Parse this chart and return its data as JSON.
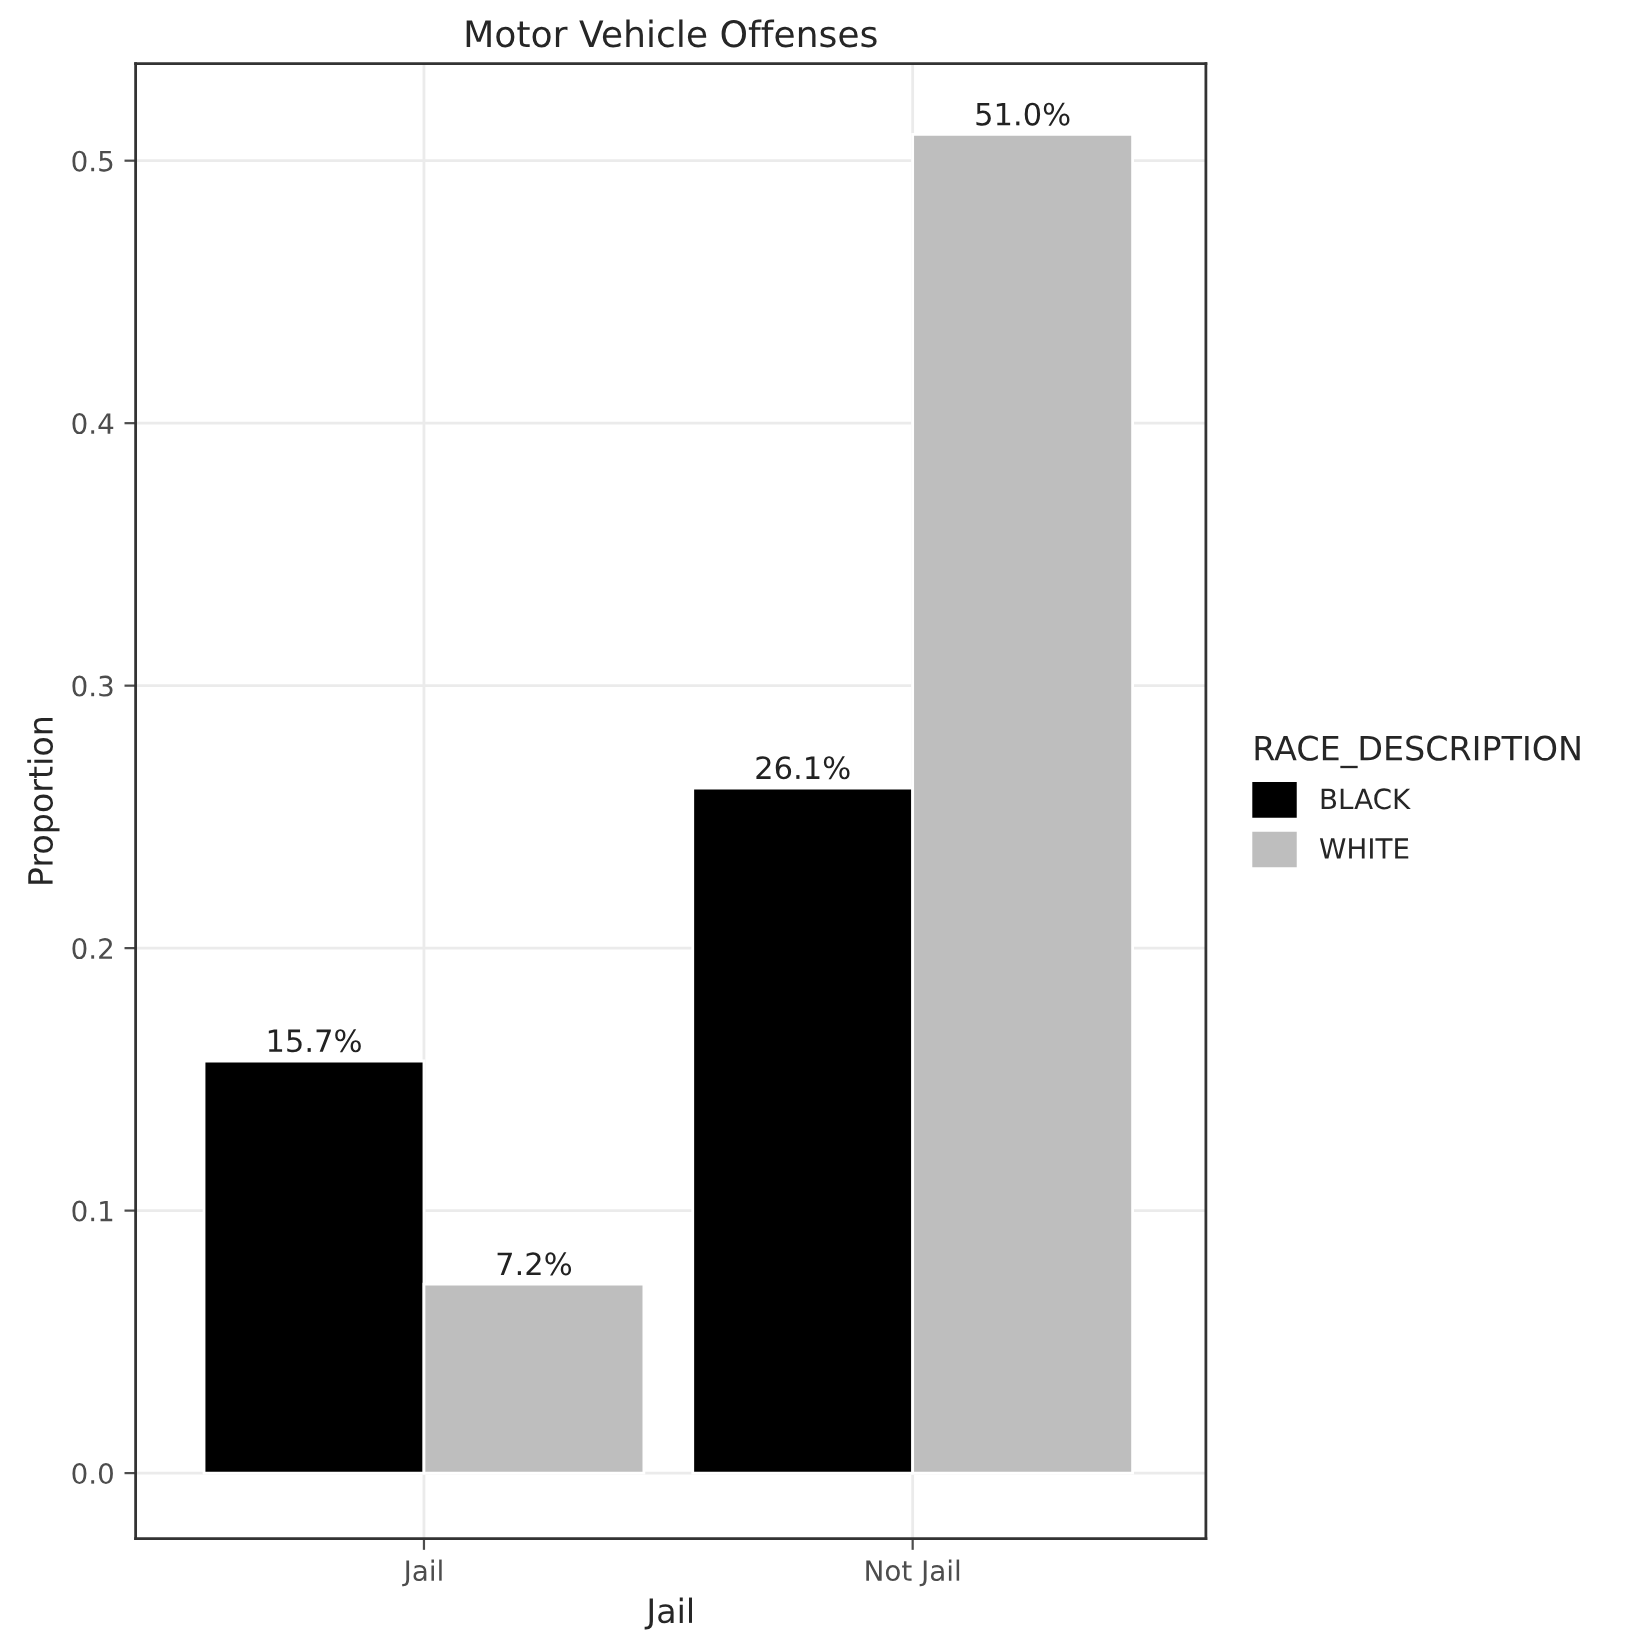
{
  "chart_data": {
    "type": "bar",
    "title": "Motor Vehicle Offenses",
    "xlabel": "Jail",
    "ylabel": "Proportion",
    "legend_title": "RACE_DESCRIPTION",
    "categories": [
      "Jail",
      "Not Jail"
    ],
    "series": [
      {
        "name": "BLACK",
        "color": "#000000",
        "values": [
          0.157,
          0.261
        ],
        "value_labels": [
          "15.7%",
          "26.1%"
        ]
      },
      {
        "name": "WHITE",
        "color": "#bebebe",
        "values": [
          0.072,
          0.51
        ],
        "value_labels": [
          "7.2%",
          "51.0%"
        ]
      }
    ],
    "ylim": [
      -0.025,
      0.537
    ],
    "yticks": [
      {
        "value": 0.0,
        "label": "0.0"
      },
      {
        "value": 0.1,
        "label": "0.1"
      },
      {
        "value": 0.2,
        "label": "0.2"
      },
      {
        "value": 0.3,
        "label": "0.3"
      },
      {
        "value": 0.4,
        "label": "0.4"
      },
      {
        "value": 0.5,
        "label": "0.5"
      }
    ],
    "grid": true,
    "legend": "right"
  }
}
